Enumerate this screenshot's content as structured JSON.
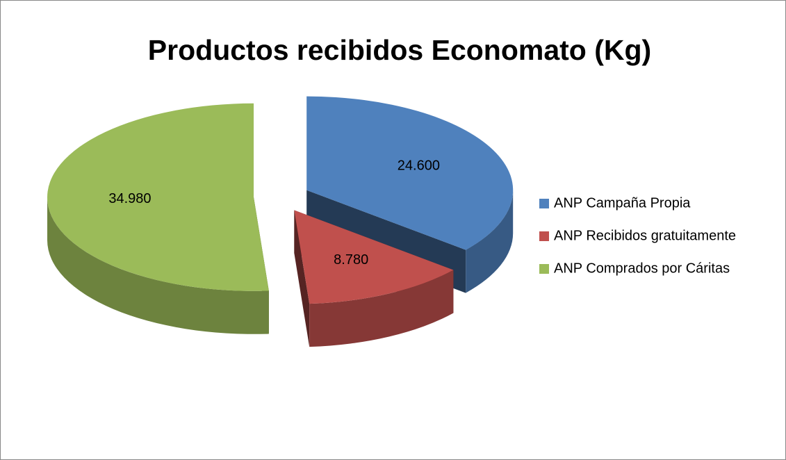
{
  "chart_data": {
    "type": "pie",
    "title": "Productos recibidos Economato (Kg)",
    "categories": [
      "ANP Campaña Propia",
      "ANP Recibidos gratuitamente",
      "ANP Comprados por Cáritas"
    ],
    "values": [
      24600,
      8780,
      34980
    ],
    "value_labels": [
      "24.600",
      "8.780",
      "34.980"
    ],
    "colors": [
      "#4f81bd",
      "#c0504d",
      "#9bbb59"
    ],
    "legend": "right"
  }
}
